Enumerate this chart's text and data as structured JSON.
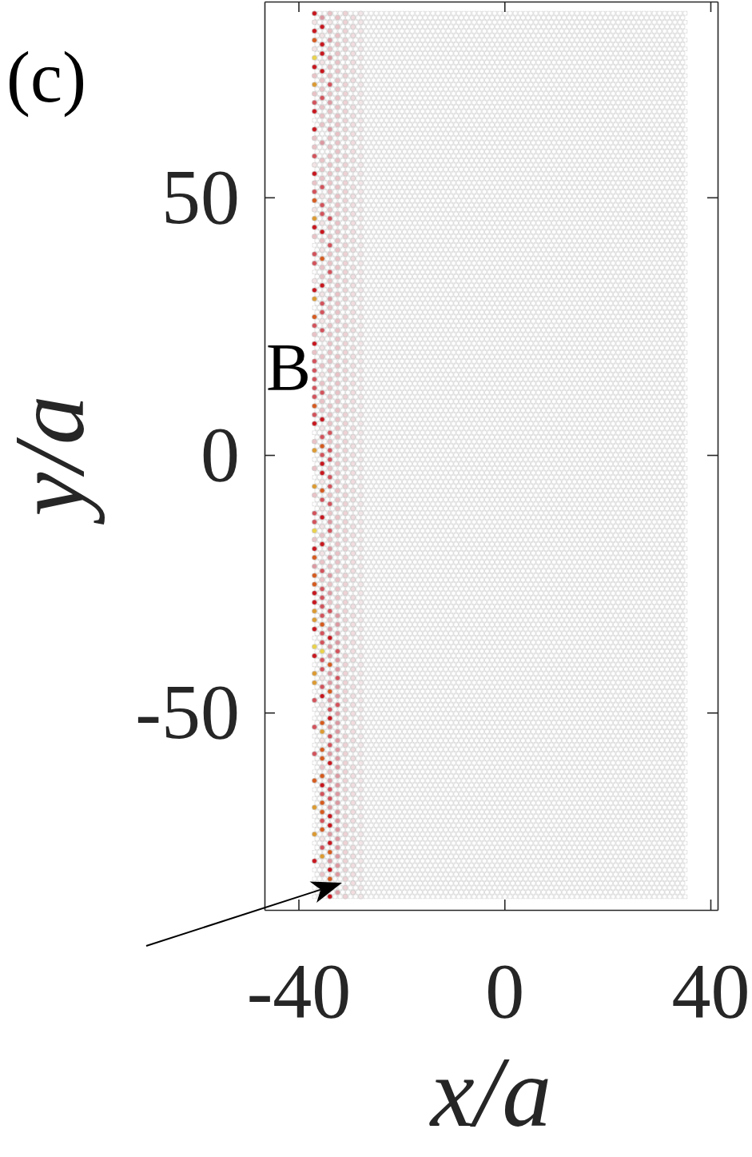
{
  "chart_data": {
    "type": "scatter",
    "xlabel": "x/a",
    "ylabel": "y/a",
    "xlim": [
      -46.6,
      41.4
    ],
    "ylim": [
      -88.3,
      88.0
    ],
    "xticks": [
      -40,
      0,
      40
    ],
    "yticks": [
      -50,
      0,
      50
    ],
    "marker": "circle",
    "annotations": [
      "(c)",
      "B"
    ],
    "bands": [
      {
        "axis": "x",
        "from": -37.4,
        "to": 35.6,
        "color": "#c6c6c6"
      }
    ],
    "series": [
      {
        "x": [
          -36.9,
          -36.9,
          -36.9,
          -36.9,
          -36.9,
          -36.9,
          -36.9,
          -36.9,
          -36.9,
          -36.9,
          -36.9,
          -36.9,
          -36.9,
          -36.9,
          -36.9,
          -36.9,
          -36.9,
          -36.9,
          -36.9,
          -36.9,
          -36.9,
          -36.9,
          -36.9,
          -36.9,
          -36.9,
          -36.9,
          -36.9,
          -36.9,
          -36.9,
          -36.9,
          -36.9,
          -36.9,
          -36.9,
          -36.9,
          -36.9,
          -36.9,
          -36.9,
          -36.9,
          -36.9,
          -36.9,
          -36.9,
          -36.9,
          -36.9,
          -36.9,
          -36.9,
          -36.9,
          -36.9,
          -36.9,
          -36.9,
          -36.9,
          -36.9,
          -36.9,
          -36.9,
          -36.9,
          -36.9,
          -36.9,
          -36.9,
          -36.9,
          -36.9,
          -36.9,
          -36.9,
          -36.9,
          -36.9,
          -36.9,
          -36.9,
          -36.9,
          -36.9,
          -36.9,
          -36.9,
          -36.9,
          -36.9,
          -36.9,
          -36.9
        ],
        "values": [
          85.7,
          84.0,
          82.3,
          80.5,
          78.8,
          77.1,
          75.3,
          73.6,
          71.9,
          70.1,
          68.4,
          66.7,
          63.2,
          61.5,
          59.8,
          58.0,
          56.3,
          54.6,
          52.8,
          51.1,
          49.4,
          47.6,
          45.9,
          44.2,
          42.4,
          39.0,
          37.2,
          33.8,
          32.0,
          30.3,
          26.8,
          25.1,
          23.4,
          21.6,
          19.9,
          18.2,
          16.4,
          14.7,
          13.0,
          11.3,
          9.5,
          7.8,
          6.1,
          2.6,
          0.9,
          -2.6,
          -6.1,
          -7.8,
          -11.3,
          -13.0,
          -14.7,
          -16.4,
          -18.2,
          -19.9,
          -21.6,
          -23.4,
          -25.1,
          -26.8,
          -28.6,
          -30.3,
          -32.0,
          -33.8,
          -37.2,
          -39.0,
          -42.4,
          -44.2,
          -47.6,
          -52.8,
          -58.0,
          -63.2,
          -68.4,
          -73.6,
          -78.8
        ],
        "colors": [
          "#c8161e",
          "#f3e3e5",
          "#c8161e",
          "#d65a1e",
          "#f3e3e5",
          "#ead24a",
          "#c8161e",
          "#e9c2c6",
          "#dd9a30",
          "#e9c2c6",
          "#d3525b",
          "#c8161e",
          "#c8161e",
          "#e9c2c6",
          "#e9c2c6",
          "#d3525b",
          "#f3e3e5",
          "#c8161e",
          "#e9c2c6",
          "#d3525b",
          "#d65a1e",
          "#f3e3e5",
          "#dd9a30",
          "#c8161e",
          "#e9c2c6",
          "#d3525b",
          "#d3525b",
          "#f3e3e5",
          "#c8161e",
          "#dd9a30",
          "#d65a1e",
          "#d3525b",
          "#e9c2c6",
          "#c8161e",
          "#e9c2c6",
          "#d3525b",
          "#d3525b",
          "#d3525b",
          "#d3525b",
          "#d3525b",
          "#d65a1e",
          "#d3525b",
          "#c8161e",
          "#e9c2c6",
          "#dd9a30",
          "#e9c2c6",
          "#dd9a30",
          "#e9c2c6",
          "#d3525b",
          "#d3525b",
          "#ead24a",
          "#e9c2c6",
          "#c8161e",
          "#d65a1e",
          "#dc98a0",
          "#d65a1e",
          "#d65a1e",
          "#c8161e",
          "#c8161e",
          "#dd9a30",
          "#dd9a30",
          "#c8161e",
          "#ead24a",
          "#c8161e",
          "#dd9a30",
          "#dd9a30",
          "#d3525b",
          "#d3525b",
          "#d3525b",
          "#d65a1e",
          "#dd9a30",
          "#dd9a30",
          "#c8161e"
        ]
      },
      {
        "x": [
          -35.4,
          -35.4,
          -35.4,
          -35.4,
          -35.4,
          -35.4,
          -35.4,
          -35.4,
          -35.4,
          -35.4,
          -35.4,
          -35.4,
          -35.4,
          -35.4,
          -35.4,
          -35.4,
          -35.4,
          -35.4,
          -35.4,
          -35.4,
          -35.4,
          -35.4,
          -35.4,
          -35.4,
          -35.4,
          -35.4,
          -35.4,
          -35.4,
          -35.4,
          -35.4,
          -35.4,
          -35.4,
          -35.4,
          -35.4,
          -35.4,
          -35.4,
          -35.4,
          -35.4,
          -35.4,
          -35.4,
          -35.4,
          -35.4,
          -35.4,
          -35.4,
          -35.4,
          -35.4,
          -35.4,
          -35.4,
          -35.4,
          -35.4,
          -35.4,
          -35.4,
          -35.4,
          -35.4,
          -35.4,
          -35.4,
          -35.4,
          -35.4,
          -35.4,
          -35.4,
          -35.4,
          -35.4,
          -35.4,
          -35.4,
          -35.4,
          -35.4,
          -35.4,
          -35.4,
          -35.4,
          -35.4,
          -35.4,
          -35.4,
          -35.4,
          -35.4,
          -35.4,
          -35.4,
          -35.4,
          -35.4,
          -35.4,
          -35.4,
          -35.4,
          -35.4,
          -35.4,
          -35.4,
          -35.4,
          -35.4,
          -35.4,
          -35.4,
          -35.4,
          -35.4,
          -35.4,
          -35.4,
          -35.4,
          -35.4,
          -35.4
        ],
        "values": [
          84.9,
          83.1,
          81.4,
          79.7,
          77.9,
          76.2,
          74.5,
          72.7,
          71.0,
          69.3,
          67.5,
          65.8,
          64.1,
          60.6,
          57.2,
          55.4,
          53.7,
          52.0,
          50.2,
          48.5,
          46.8,
          45.0,
          43.3,
          41.6,
          39.8,
          38.1,
          36.4,
          34.6,
          32.9,
          31.2,
          29.4,
          27.7,
          26.0,
          24.2,
          22.5,
          20.8,
          19.1,
          17.3,
          15.6,
          13.9,
          12.1,
          10.4,
          8.7,
          6.9,
          5.2,
          3.5,
          1.7,
          0.0,
          -1.7,
          -3.5,
          -5.2,
          -6.9,
          -8.7,
          -10.4,
          -12.1,
          -13.9,
          -15.6,
          -17.3,
          -19.1,
          -20.8,
          -22.5,
          -24.2,
          -26.0,
          -27.7,
          -29.4,
          -31.2,
          -32.9,
          -34.6,
          -36.4,
          -38.1,
          -39.8,
          -41.6,
          -43.3,
          -45.0,
          -46.8,
          -48.5,
          -50.2,
          -52.0,
          -53.7,
          -55.4,
          -57.2,
          -58.9,
          -60.6,
          -62.3,
          -64.1,
          -65.8,
          -67.5,
          -69.3,
          -71.0,
          -72.7,
          -74.5,
          -76.2,
          -77.9,
          -79.7,
          -81.4
        ],
        "colors": [
          "#dc98a0",
          "#c8161e",
          "#f3e3e5",
          "#c8161e",
          "#c8161e",
          "#f3e3e5",
          "#c8161e",
          "#e9c2c6",
          "#e9c2c6",
          "#d3525b",
          "#e9c2c6",
          "#e9c2c6",
          "#e9c2c6",
          "#dc98a0",
          "#e9c2c6",
          "#e9c2c6",
          "#e9c2c6",
          "#d3525b",
          "#f3e3e5",
          "#d3525b",
          "#d3525b",
          "#f3e3e5",
          "#c8161e",
          "#e9c2c6",
          "#f3e3e5",
          "#d65a1e",
          "#e9c2c6",
          "#e9c2c6",
          "#c8161e",
          "#f3e3e5",
          "#d3525b",
          "#d3525b",
          "#f3e3e5",
          "#d3525b",
          "#f3e3e5",
          "#f3e3e5",
          "#e9c2c6",
          "#e9c2c6",
          "#f3e3e5",
          "#e9c2c6",
          "#d3525b",
          "#e9c2c6",
          "#e9c2c6",
          "#c8161e",
          "#f3e3e5",
          "#d3525b",
          "#d65a1e",
          "#d3525b",
          "#c8161e",
          "#c8161e",
          "#f3e3e5",
          "#d65a1e",
          "#d3525b",
          "#f3e3e5",
          "#c8161e",
          "#f3e3e5",
          "#e9c2c6",
          "#c8161e",
          "#f3e3e5",
          "#e9c2c6",
          "#d3525b",
          "#e9c2c6",
          "#d3525b",
          "#d3525b",
          "#d3525b",
          "#d3525b",
          "#d65a1e",
          "#d3525b",
          "#d3525b",
          "#ead24a",
          "#d3525b",
          "#d3525b",
          "#f3e3e5",
          "#d3525b",
          "#c8161e",
          "#f3e3e5",
          "#f3e3e5",
          "#d65a1e",
          "#dd9a30",
          "#f3e3e5",
          "#d65a1e",
          "#d65a1e",
          "#e9c2c6",
          "#d65a1e",
          "#c8161e",
          "#d3525b",
          "#d65a1e",
          "#d65a1e",
          "#d3525b",
          "#d65a1e",
          "#f3e3e5",
          "#d3525b",
          "#dd9a30",
          "#f3e3e5",
          "#e9c2c6"
        ]
      },
      {
        "x": [
          -33.9,
          -33.9,
          -33.9,
          -33.9,
          -33.9,
          -33.9,
          -33.9,
          -33.9,
          -33.9,
          -33.9,
          -33.9,
          -33.9,
          -33.9,
          -33.9,
          -33.9,
          -33.9,
          -33.9,
          -33.9,
          -33.9,
          -33.9,
          -33.9,
          -33.9,
          -33.9,
          -33.9,
          -33.9,
          -33.9,
          -33.9,
          -33.9,
          -33.9,
          -33.9,
          -33.9,
          -33.9,
          -33.9,
          -33.9,
          -33.9,
          -33.9,
          -33.9,
          -33.9,
          -33.9,
          -33.9,
          -33.9,
          -33.9,
          -33.9,
          -33.9,
          -33.9,
          -33.9,
          -33.9,
          -33.9,
          -33.9,
          -33.9,
          -33.9,
          -33.9,
          -33.9,
          -33.9,
          -33.9,
          -33.9,
          -33.9,
          -33.9,
          -33.9,
          -33.9,
          -33.9,
          -33.9,
          -33.9,
          -33.9,
          -33.9,
          -33.9,
          -33.9,
          -33.9,
          -33.9,
          -33.9,
          -33.9,
          -33.9,
          -33.9,
          -33.9,
          -33.9,
          -33.9,
          -33.9,
          -33.9,
          -33.9,
          -33.9,
          -33.9,
          -33.9,
          -33.9,
          -33.9,
          -33.9,
          -33.9,
          -33.9,
          -33.9,
          -33.9,
          -33.9,
          -33.9,
          -33.9,
          -33.9,
          -33.9,
          -33.9,
          -33.9,
          -33.9,
          -33.9,
          -33.9
        ],
        "values": [
          85.7,
          84.0,
          82.3,
          80.5,
          78.8,
          77.1,
          75.3,
          73.6,
          71.9,
          70.1,
          68.4,
          66.7,
          64.9,
          63.2,
          61.5,
          59.8,
          58.0,
          56.3,
          54.6,
          52.8,
          51.1,
          49.4,
          47.6,
          45.9,
          44.2,
          42.4,
          40.7,
          39.0,
          37.2,
          35.5,
          33.8,
          32.0,
          30.3,
          28.6,
          26.8,
          25.1,
          23.4,
          21.6,
          19.9,
          18.2,
          16.4,
          14.7,
          13.0,
          11.3,
          9.5,
          7.8,
          6.1,
          4.3,
          2.6,
          0.9,
          -0.9,
          -2.6,
          -4.3,
          -6.1,
          -7.8,
          -9.5,
          -11.3,
          -13.0,
          -14.7,
          -16.4,
          -18.2,
          -19.9,
          -21.6,
          -23.4,
          -25.1,
          -26.8,
          -28.6,
          -30.3,
          -32.0,
          -33.8,
          -35.5,
          -37.2,
          -39.0,
          -40.7,
          -42.4,
          -44.2,
          -45.9,
          -47.6,
          -49.4,
          -51.1,
          -52.8,
          -54.6,
          -56.3,
          -58.0,
          -59.8,
          -61.5,
          -63.2,
          -64.9,
          -66.7,
          -68.4,
          -70.1,
          -71.9,
          -73.6,
          -75.3,
          -77.1,
          -78.8,
          -80.5,
          -82.3,
          -85.7
        ],
        "colors": [
          "#e9c2c6",
          "#f3e3e5",
          "#e9c2c6",
          "#dc98a0",
          "#e9c2c6",
          "#dc98a0",
          "#e9c2c6",
          "#e9c2c6",
          "#d3525b",
          "#e9c2c6",
          "#dc98a0",
          "#e9c2c6",
          "#e9c2c6",
          "#dc98a0",
          "#e9c2c6",
          "#e9c2c6",
          "#e9c2c6",
          "#e9c2c6",
          "#e9c2c6",
          "#e9c2c6",
          "#e9c2c6",
          "#e9c2c6",
          "#e9c2c6",
          "#d3525b",
          "#e9c2c6",
          "#e9c2c6",
          "#d3525b",
          "#e9c2c6",
          "#e9c2c6",
          "#d3525b",
          "#e9c2c6",
          "#e9c2c6",
          "#dc98a0",
          "#e9c2c6",
          "#e9c2c6",
          "#e9c2c6",
          "#e9c2c6",
          "#e9c2c6",
          "#e9c2c6",
          "#e9c2c6",
          "#e9c2c6",
          "#e9c2c6",
          "#e9c2c6",
          "#e9c2c6",
          "#e9c2c6",
          "#e9c2c6",
          "#e9c2c6",
          "#d3525b",
          "#e9c2c6",
          "#d3525b",
          "#d3525b",
          "#e9c2c6",
          "#d3525b",
          "#d3525b",
          "#e9c2c6",
          "#d3525b",
          "#e9c2c6",
          "#dc98a0",
          "#d3525b",
          "#e9c2c6",
          "#dc98a0",
          "#dc98a0",
          "#e9c2c6",
          "#dc98a0",
          "#e9c2c6",
          "#dc98a0",
          "#e9c2c6",
          "#d3525b",
          "#e9c2c6",
          "#dc98a0",
          "#c8161e",
          "#dc98a0",
          "#dc98a0",
          "#d65a1e",
          "#dc98a0",
          "#dc98a0",
          "#d65a1e",
          "#dc98a0",
          "#d3525b",
          "#c8161e",
          "#dc98a0",
          "#d3525b",
          "#d3525b",
          "#dc98a0",
          "#c8161e",
          "#e9c2c6",
          "#dc98a0",
          "#d3525b",
          "#d3525b",
          "#dc98a0",
          "#c8161e",
          "#c8161e",
          "#dc98a0",
          "#c8161e",
          "#d65a1e",
          "#dc98a0",
          "#c8161e",
          "#d65a1e",
          "#c8161e"
        ]
      },
      {
        "x": [
          -32.4,
          -32.4,
          -32.4,
          -32.4,
          -32.4,
          -32.4,
          -32.4,
          -32.4,
          -32.4,
          -32.4,
          -32.4,
          -32.4,
          -32.4,
          -32.4,
          -32.4,
          -32.4,
          -32.4,
          -32.4,
          -32.4,
          -32.4,
          -32.4,
          -32.4,
          -32.4,
          -32.4,
          -32.4,
          -32.4,
          -32.4,
          -32.4,
          -32.4,
          -32.4,
          -32.4,
          -32.4,
          -32.4,
          -32.4,
          -32.4,
          -32.4,
          -32.4,
          -32.4,
          -32.4,
          -32.4,
          -32.4,
          -32.4,
          -32.4,
          -32.4,
          -32.4,
          -32.4,
          -32.4,
          -32.4,
          -32.4,
          -32.4,
          -32.4,
          -32.4,
          -32.4,
          -32.4,
          -32.4,
          -32.4,
          -32.4,
          -32.4,
          -32.4,
          -32.4,
          -32.4,
          -32.4,
          -32.4,
          -32.4,
          -32.4,
          -32.4,
          -32.4
        ],
        "values": [
          84.9,
          83.1,
          81.4,
          79.7,
          77.9,
          76.2,
          74.5,
          72.7,
          71.0,
          69.3,
          67.5,
          65.8,
          64.1,
          62.3,
          60.6,
          58.9,
          57.2,
          55.4,
          53.7,
          52.0,
          50.2,
          48.5,
          46.8,
          45.0,
          43.3,
          41.6,
          39.8,
          38.1,
          36.4,
          34.6,
          32.9,
          31.2,
          29.4,
          27.7,
          26.0,
          24.2,
          22.5,
          20.8,
          19.1,
          17.3,
          15.6,
          13.9,
          12.1,
          10.4,
          8.7,
          6.9,
          5.2,
          3.5,
          1.7,
          0.0,
          -1.7,
          -3.5,
          -5.2,
          -6.9,
          -8.7,
          -10.4,
          -12.1,
          -13.9,
          -15.6,
          -17.3,
          -19.1,
          -20.8,
          -22.5,
          -24.2,
          -26.0,
          -27.7,
          -29.4
        ],
        "color": "#e9c2c6"
      },
      {
        "x": [
          -32.4,
          -32.4,
          -32.4,
          -32.4,
          -32.4,
          -32.4,
          -32.4,
          -32.4,
          -32.4,
          -32.4,
          -32.4,
          -32.4,
          -32.4,
          -32.4,
          -32.4,
          -32.4,
          -32.4,
          -32.4,
          -32.4,
          -32.4,
          -32.4,
          -32.4,
          -32.4,
          -32.4,
          -32.4,
          -32.4,
          -32.4,
          -32.4,
          -32.4,
          -32.4,
          -32.4
        ],
        "values": [
          -31.2,
          -32.9,
          -34.6,
          -36.4,
          -38.1,
          -39.8,
          -41.6,
          -43.3,
          -45.0,
          -46.8,
          -48.5,
          -50.2,
          -52.0,
          -53.7,
          -55.4,
          -57.2,
          -58.9,
          -60.6,
          -62.3,
          -64.1,
          -65.8,
          -67.5,
          -69.3,
          -71.0,
          -72.7,
          -74.5,
          -76.2,
          -77.9,
          -79.7,
          -81.4,
          -84.9
        ],
        "colors": [
          "#dc98a0",
          "#dc98a0",
          "#dc98a0",
          "#dc98a0",
          "#d3525b",
          "#dc98a0",
          "#dc98a0",
          "#d3525b",
          "#dc98a0",
          "#dc98a0",
          "#d3525b",
          "#dc98a0",
          "#dc98a0",
          "#dc98a0",
          "#dc98a0",
          "#dc98a0",
          "#dc98a0",
          "#dc98a0",
          "#dc98a0",
          "#dc98a0",
          "#dc98a0",
          "#dc98a0",
          "#dc98a0",
          "#dc98a0",
          "#dc98a0",
          "#dc98a0",
          "#dc98a0",
          "#dc98a0",
          "#dc98a0",
          "#dc98a0",
          "#dc98a0"
        ]
      },
      {
        "x": [
          -30.9,
          -30.9,
          -30.9,
          -30.9,
          -30.9,
          -30.9,
          -30.9,
          -30.9,
          -30.9,
          -30.9,
          -30.9,
          -30.9,
          -30.9,
          -30.9,
          -30.9,
          -30.9,
          -30.9,
          -30.9,
          -30.9,
          -30.9,
          -30.9,
          -30.9,
          -30.9,
          -30.9,
          -30.9,
          -30.9,
          -30.9,
          -30.9,
          -30.9,
          -30.9,
          -30.9,
          -30.9,
          -30.9,
          -30.9,
          -30.9,
          -30.9,
          -30.9,
          -30.9,
          -30.9,
          -30.9,
          -30.9,
          -30.9,
          -30.9,
          -30.9,
          -30.9,
          -30.9,
          -30.9,
          -30.9,
          -30.9,
          -30.9,
          -30.9,
          -30.9,
          -30.9,
          -30.9,
          -30.9,
          -30.9,
          -30.9,
          -30.9,
          -30.9,
          -30.9,
          -30.9,
          -30.9,
          -30.9,
          -30.9,
          -30.9,
          -30.9,
          -30.9,
          -30.9,
          -30.9,
          -30.9,
          -30.9,
          -30.9,
          -30.9,
          -30.9,
          -30.9,
          -30.9,
          -30.9,
          -30.9,
          -30.9,
          -30.9,
          -30.9,
          -30.9,
          -30.9,
          -30.9,
          -30.9,
          -30.9,
          -30.9,
          -30.9,
          -30.9,
          -30.9,
          -30.9,
          -30.9,
          -30.9,
          -30.9,
          -30.9,
          -30.9,
          -30.9,
          -30.9,
          -30.9,
          -30.9
        ],
        "values": [
          85.7,
          84.0,
          82.3,
          80.5,
          78.8,
          77.1,
          75.3,
          73.6,
          71.9,
          70.1,
          68.4,
          66.7,
          64.9,
          63.2,
          61.5,
          59.8,
          58.0,
          56.3,
          54.6,
          52.8,
          51.1,
          49.4,
          47.6,
          45.9,
          44.2,
          42.4,
          40.7,
          39.0,
          37.2,
          35.5,
          33.8,
          32.0,
          30.3,
          28.6,
          26.8,
          25.1,
          23.4,
          21.6,
          19.9,
          18.2,
          16.4,
          14.7,
          13.0,
          11.3,
          9.5,
          7.8,
          6.1,
          4.3,
          2.6,
          0.9,
          -0.9,
          -2.6,
          -4.3,
          -6.1,
          -7.8,
          -9.5,
          -11.3,
          -13.0,
          -14.7,
          -16.4,
          -18.2,
          -19.9,
          -21.6,
          -23.4,
          -25.1,
          -26.8,
          -28.6,
          -30.3,
          -32.0,
          -33.8,
          -35.5,
          -37.2,
          -39.0,
          -40.7,
          -42.4,
          -44.2,
          -45.9,
          -47.6,
          -49.4,
          -51.1,
          -52.8,
          -54.6,
          -56.3,
          -58.0,
          -59.8,
          -61.5,
          -63.2,
          -64.9,
          -66.7,
          -68.4,
          -70.1,
          -71.9,
          -73.6,
          -75.3,
          -77.1,
          -78.8,
          -80.5,
          -82.3,
          -84.0,
          -85.7
        ],
        "color": "#eed2d5"
      },
      {
        "x": [
          -29.4,
          -29.4,
          -29.4,
          -29.4,
          -29.4,
          -29.4,
          -29.4,
          -29.4,
          -29.4,
          -29.4,
          -29.4,
          -29.4,
          -29.4,
          -29.4,
          -29.4,
          -29.4,
          -29.4,
          -29.4,
          -29.4,
          -29.4,
          -29.4,
          -29.4,
          -29.4,
          -29.4,
          -29.4,
          -29.4,
          -29.4,
          -29.4,
          -29.4,
          -29.4,
          -29.4,
          -29.4,
          -29.4,
          -29.4,
          -29.4,
          -29.4,
          -29.4,
          -29.4,
          -29.4,
          -29.4,
          -29.4,
          -29.4,
          -29.4,
          -29.4,
          -29.4,
          -29.4,
          -29.4,
          -29.4,
          -29.4,
          -29.4,
          -29.4,
          -29.4,
          -29.4,
          -29.4,
          -29.4,
          -29.4,
          -29.4,
          -29.4,
          -29.4,
          -29.4,
          -29.4,
          -29.4,
          -29.4,
          -29.4,
          -29.4,
          -29.4,
          -29.4,
          -29.4,
          -29.4,
          -29.4,
          -29.4,
          -29.4,
          -29.4,
          -29.4,
          -29.4,
          -29.4,
          -29.4,
          -29.4,
          -29.4,
          -29.4,
          -29.4,
          -29.4,
          -29.4,
          -29.4,
          -29.4,
          -29.4,
          -29.4,
          -29.4,
          -29.4,
          -29.4,
          -29.4,
          -29.4,
          -29.4,
          -29.4,
          -29.4,
          -29.4,
          -29.4,
          -29.4,
          -29.4
        ],
        "values": [
          84.9,
          83.1,
          81.4,
          79.7,
          77.9,
          76.2,
          74.5,
          72.7,
          71.0,
          69.3,
          67.5,
          65.8,
          64.1,
          62.3,
          60.6,
          58.9,
          57.2,
          55.4,
          53.7,
          52.0,
          50.2,
          48.5,
          46.8,
          45.0,
          43.3,
          41.6,
          39.8,
          38.1,
          36.4,
          34.6,
          32.9,
          31.2,
          29.4,
          27.7,
          26.0,
          24.2,
          22.5,
          20.8,
          19.1,
          17.3,
          15.6,
          13.9,
          12.1,
          10.4,
          8.7,
          6.9,
          5.2,
          3.5,
          1.7,
          0.0,
          -1.7,
          -3.5,
          -5.2,
          -6.9,
          -8.7,
          -10.4,
          -12.1,
          -13.9,
          -15.6,
          -17.3,
          -19.1,
          -20.8,
          -22.5,
          -24.2,
          -26.0,
          -27.7,
          -29.4,
          -31.2,
          -32.9,
          -34.6,
          -36.4,
          -38.1,
          -39.8,
          -41.6,
          -43.3,
          -45.0,
          -46.8,
          -48.5,
          -50.2,
          -52.0,
          -53.7,
          -55.4,
          -57.2,
          -58.9,
          -60.6,
          -62.3,
          -64.1,
          -65.8,
          -67.5,
          -69.3,
          -71.0,
          -72.7,
          -74.5,
          -76.2,
          -77.9,
          -79.7,
          -81.4,
          -83.1,
          -84.9
        ],
        "color": "#f1dcdf"
      },
      {
        "x": [
          -27.9,
          -27.9,
          -27.9,
          -27.9,
          -27.9,
          -27.9,
          -27.9,
          -27.9,
          -27.9,
          -27.9,
          -27.9,
          -27.9,
          -27.9,
          -27.9,
          -27.9,
          -27.9,
          -27.9,
          -27.9,
          -27.9,
          -27.9,
          -27.9,
          -27.9,
          -27.9,
          -27.9,
          -27.9,
          -27.9,
          -27.9,
          -27.9,
          -27.9,
          -27.9,
          -27.9,
          -27.9,
          -27.9,
          -27.9,
          -27.9,
          -27.9,
          -27.9,
          -27.9,
          -27.9,
          -27.9,
          -27.9,
          -27.9,
          -27.9,
          -27.9,
          -27.9,
          -27.9,
          -27.9,
          -27.9,
          -27.9,
          -27.9,
          -27.9,
          -27.9,
          -27.9,
          -27.9,
          -27.9,
          -27.9,
          -27.9,
          -27.9,
          -27.9,
          -27.9,
          -27.9,
          -27.9,
          -27.9,
          -27.9,
          -27.9,
          -27.9,
          -27.9,
          -27.9,
          -27.9,
          -27.9,
          -27.9,
          -27.9,
          -27.9,
          -27.9,
          -27.9,
          -27.9,
          -27.9,
          -27.9,
          -27.9,
          -27.9,
          -27.9,
          -27.9,
          -27.9,
          -27.9,
          -27.9,
          -27.9,
          -27.9,
          -27.9,
          -27.9,
          -27.9,
          -27.9,
          -27.9,
          -27.9,
          -27.9,
          -27.9,
          -27.9,
          -27.9,
          -27.9,
          -27.9,
          -27.9
        ],
        "values": [
          85.7,
          84.0,
          82.3,
          80.5,
          78.8,
          77.1,
          75.3,
          73.6,
          71.9,
          70.1,
          68.4,
          66.7,
          64.9,
          63.2,
          61.5,
          59.8,
          58.0,
          56.3,
          54.6,
          52.8,
          51.1,
          49.4,
          47.6,
          45.9,
          44.2,
          42.4,
          40.7,
          39.0,
          37.2,
          35.5,
          33.8,
          32.0,
          30.3,
          28.6,
          26.8,
          25.1,
          23.4,
          21.6,
          19.9,
          18.2,
          16.4,
          14.7,
          13.0,
          11.3,
          9.5,
          7.8,
          6.1,
          4.3,
          2.6,
          0.9,
          -0.9,
          -2.6,
          -4.3,
          -6.1,
          -7.8,
          -9.5,
          -11.3,
          -13.0,
          -14.7,
          -16.4,
          -18.2,
          -19.9,
          -21.6,
          -23.4,
          -25.1,
          -26.8,
          -28.6,
          -30.3,
          -32.0,
          -33.8,
          -35.5,
          -37.2,
          -39.0,
          -40.7,
          -42.4,
          -44.2,
          -45.9,
          -47.6,
          -49.4,
          -51.1,
          -52.8,
          -54.6,
          -56.3,
          -58.0,
          -59.8,
          -61.5,
          -63.2,
          -64.9,
          -66.7,
          -68.4,
          -70.1,
          -71.9,
          -73.6,
          -75.3,
          -77.1,
          -78.8,
          -80.5,
          -82.3,
          -84.0,
          -85.7
        ],
        "color": "#f3e6e8"
      }
    ]
  }
}
